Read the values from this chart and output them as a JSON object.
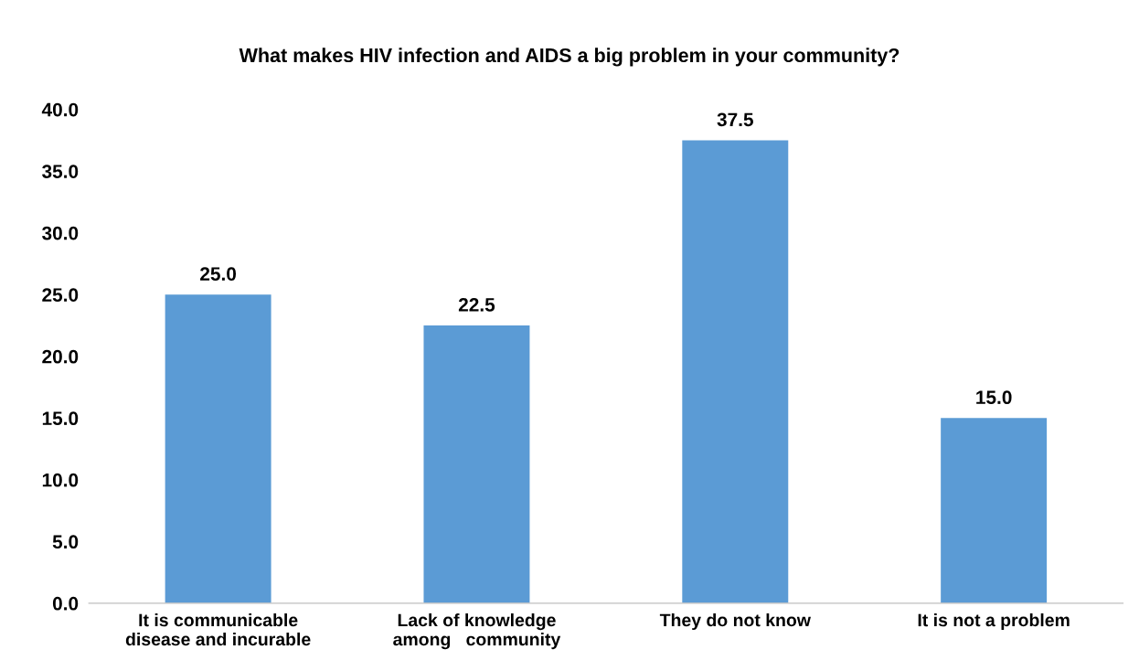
{
  "chart_data": {
    "type": "bar",
    "title": "What makes HIV infection and AIDS a big problem in your community?",
    "categories": [
      "It is communicable\ndisease and incurable",
      "Lack of knowledge\namong   community",
      "They do not know",
      "It is not a problem"
    ],
    "values": [
      25.0,
      22.5,
      37.5,
      15.0
    ],
    "value_labels": [
      "25.0",
      "22.5",
      "37.5",
      "15.0"
    ],
    "color": "#5b9bd5",
    "ylim": [
      0,
      40
    ],
    "yticks": [
      {
        "value": 0,
        "label": "0.0"
      },
      {
        "value": 5,
        "label": "5.0"
      },
      {
        "value": 10,
        "label": "10.0"
      },
      {
        "value": 15,
        "label": "15.0"
      },
      {
        "value": 20,
        "label": "20.0"
      },
      {
        "value": 25,
        "label": "25.0"
      },
      {
        "value": 30,
        "label": "30.0"
      },
      {
        "value": 35,
        "label": "35.0"
      },
      {
        "value": 40,
        "label": "40.0"
      }
    ],
    "grid": false
  }
}
